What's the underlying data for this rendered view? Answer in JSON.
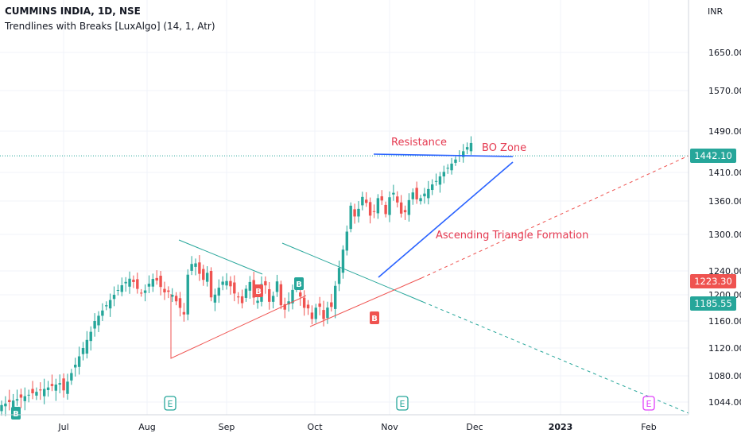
{
  "header": {
    "symbol_line": "CUMMINS INDIA, 1D, NSE",
    "indicator_line": "Trendlines with Breaks [LuxAlgo] (14, 1, Atr)",
    "currency": "INR"
  },
  "chart_data": {
    "type": "candlestick",
    "title": "CUMMINS INDIA, 1D, NSE",
    "y_ticks": [
      "1650.00",
      "1570.00",
      "1490.00",
      "1410.00",
      "1360.00",
      "1300.00",
      "1240.00",
      "1200.00",
      "1160.00",
      "1120.00",
      "1080.00",
      "1044.00"
    ],
    "x_ticks": [
      "Jul",
      "Aug",
      "Sep",
      "Oct",
      "Nov",
      "Dec",
      "2023",
      "Feb"
    ],
    "price_tags": [
      {
        "label": "1442.10",
        "value": 1442.1,
        "color": "#26a69a"
      },
      {
        "label": "1223.30",
        "value": 1223.3,
        "color": "#ef5350"
      },
      {
        "label": "1185.55",
        "value": 1185.55,
        "color": "#26a69a"
      }
    ],
    "annotations": [
      {
        "text": "Resistance",
        "color": "#e53950"
      },
      {
        "text": "BO Zone",
        "color": "#e53950"
      },
      {
        "text": "Ascending Triangle Formation",
        "color": "#e53950"
      }
    ],
    "markers": [
      {
        "text": "B",
        "kind": "break-up"
      },
      {
        "text": "B",
        "kind": "break-down"
      },
      {
        "text": "B",
        "kind": "break-up"
      },
      {
        "text": "B",
        "kind": "break-down"
      }
    ],
    "event_markers": [
      "E",
      "E",
      "E",
      "E"
    ],
    "up_color": "#26a69a",
    "down_color": "#ef5350"
  }
}
